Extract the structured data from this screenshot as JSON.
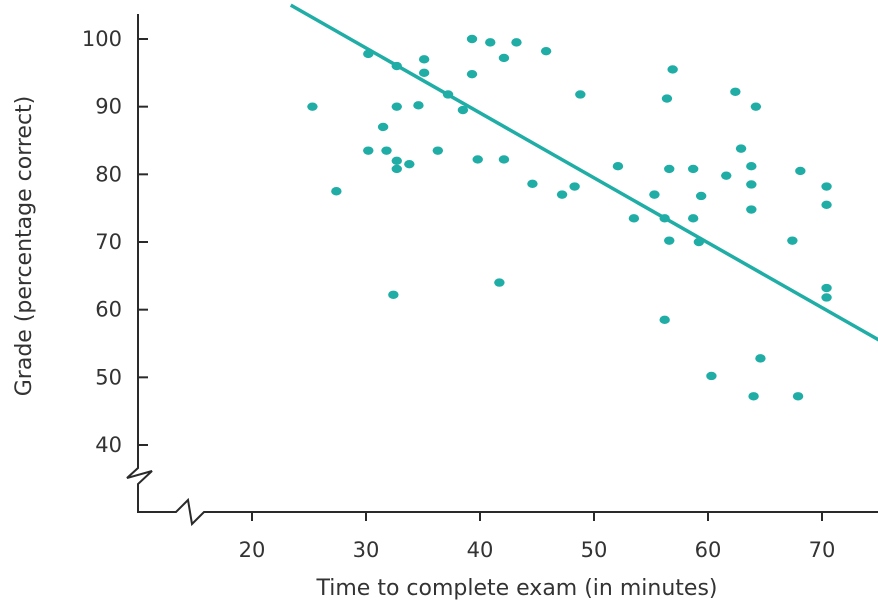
{
  "chart_data": {
    "type": "scatter",
    "title": "",
    "xlabel": "Time to complete exam (in minutes)",
    "ylabel": "Grade (percentage correct)",
    "xlim": [
      15,
      75
    ],
    "ylim": [
      35,
      105
    ],
    "x_ticks": [
      "20",
      "30",
      "40",
      "50",
      "60",
      "70"
    ],
    "y_ticks": [
      "40",
      "50",
      "60",
      "70",
      "80",
      "90",
      "100"
    ],
    "axis_breaks": true,
    "grid": false,
    "point_color": "#1fada6",
    "line_color": "#1fada6",
    "axis_color": "#2a2a2a",
    "trend_line": {
      "x": [
        23.4,
        75
      ],
      "y": [
        105,
        55.5
      ]
    },
    "points": [
      {
        "x": 25.3,
        "y": 90
      },
      {
        "x": 27.4,
        "y": 77.5
      },
      {
        "x": 30.2,
        "y": 97.8
      },
      {
        "x": 30.2,
        "y": 83.5
      },
      {
        "x": 31.5,
        "y": 87
      },
      {
        "x": 31.8,
        "y": 83.5
      },
      {
        "x": 32.4,
        "y": 62.2
      },
      {
        "x": 32.7,
        "y": 96
      },
      {
        "x": 32.7,
        "y": 90
      },
      {
        "x": 32.7,
        "y": 82
      },
      {
        "x": 32.7,
        "y": 80.8
      },
      {
        "x": 33.8,
        "y": 81.5
      },
      {
        "x": 34.6,
        "y": 90.2
      },
      {
        "x": 35.1,
        "y": 97
      },
      {
        "x": 35.1,
        "y": 95
      },
      {
        "x": 36.3,
        "y": 83.5
      },
      {
        "x": 37.2,
        "y": 91.8
      },
      {
        "x": 38.5,
        "y": 89.5
      },
      {
        "x": 39.3,
        "y": 100
      },
      {
        "x": 39.3,
        "y": 94.8
      },
      {
        "x": 39.8,
        "y": 82.2
      },
      {
        "x": 40.9,
        "y": 99.5
      },
      {
        "x": 41.7,
        "y": 64
      },
      {
        "x": 42.1,
        "y": 97.2
      },
      {
        "x": 42.1,
        "y": 82.2
      },
      {
        "x": 43.2,
        "y": 99.5
      },
      {
        "x": 44.6,
        "y": 78.6
      },
      {
        "x": 45.8,
        "y": 98.2
      },
      {
        "x": 47.2,
        "y": 77
      },
      {
        "x": 48.3,
        "y": 78.2
      },
      {
        "x": 48.8,
        "y": 91.8
      },
      {
        "x": 52.1,
        "y": 81.2
      },
      {
        "x": 53.5,
        "y": 73.5
      },
      {
        "x": 55.3,
        "y": 77
      },
      {
        "x": 56.2,
        "y": 73.5
      },
      {
        "x": 56.2,
        "y": 58.5
      },
      {
        "x": 56.4,
        "y": 91.2
      },
      {
        "x": 56.6,
        "y": 80.8
      },
      {
        "x": 56.6,
        "y": 70.2
      },
      {
        "x": 56.9,
        "y": 95.5
      },
      {
        "x": 58.7,
        "y": 80.8
      },
      {
        "x": 58.7,
        "y": 73.5
      },
      {
        "x": 59.2,
        "y": 70
      },
      {
        "x": 59.4,
        "y": 76.8
      },
      {
        "x": 60.3,
        "y": 50.2
      },
      {
        "x": 61.6,
        "y": 79.8
      },
      {
        "x": 62.4,
        "y": 92.2
      },
      {
        "x": 62.9,
        "y": 83.8
      },
      {
        "x": 63.8,
        "y": 81.2
      },
      {
        "x": 63.8,
        "y": 78.5
      },
      {
        "x": 63.8,
        "y": 74.8
      },
      {
        "x": 64.0,
        "y": 47.2
      },
      {
        "x": 64.2,
        "y": 90
      },
      {
        "x": 64.6,
        "y": 52.8
      },
      {
        "x": 67.4,
        "y": 70.2
      },
      {
        "x": 67.9,
        "y": 47.2
      },
      {
        "x": 68.1,
        "y": 80.5
      },
      {
        "x": 70.4,
        "y": 78.2
      },
      {
        "x": 70.4,
        "y": 75.5
      },
      {
        "x": 70.4,
        "y": 63.2
      },
      {
        "x": 70.4,
        "y": 61.8
      }
    ]
  }
}
